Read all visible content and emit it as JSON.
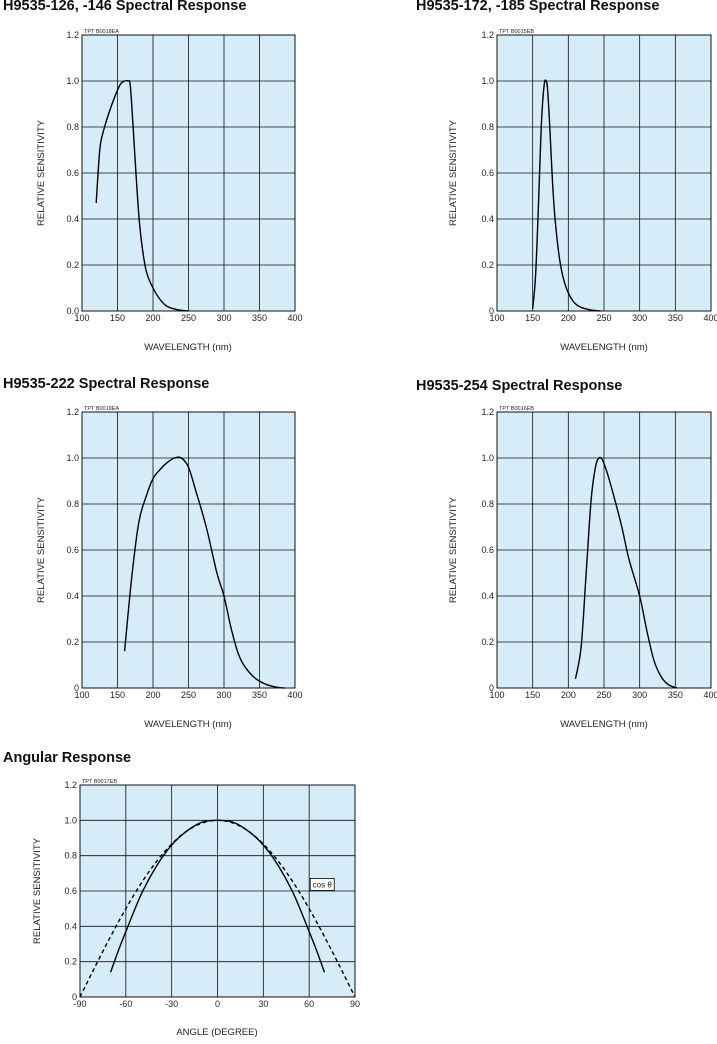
{
  "colors": {
    "plot_bg": "#d6ecf8",
    "grid": "#111111",
    "curve": "#000000",
    "page_bg": "#ffffff"
  },
  "chart_data": [
    {
      "id": "c1",
      "type": "line",
      "title": "H9535-126, -146 Spectral Response",
      "code": "TPT B0018EA",
      "xlabel": "WAVELENGTH (nm)",
      "ylabel": "RELATIVE SENSITIVITY",
      "xlim": [
        100,
        400
      ],
      "ylim": [
        0,
        1.2
      ],
      "xticks": [
        100,
        150,
        200,
        250,
        300,
        350,
        400
      ],
      "xtick_labels": [
        "100",
        "150",
        "200",
        "250",
        "300",
        "350",
        "400"
      ],
      "yticks": [
        0,
        0.2,
        0.4,
        0.6,
        0.8,
        1.0,
        1.2
      ],
      "ytick_labels": [
        "0.0",
        "0.2",
        "0.4",
        "0.6",
        "0.8",
        "1.0",
        "1.2"
      ],
      "grid": true,
      "series": [
        {
          "dashed": false,
          "points": [
            [
              120,
              0.47
            ],
            [
              125,
              0.7
            ],
            [
              130,
              0.78
            ],
            [
              140,
              0.88
            ],
            [
              150,
              0.96
            ],
            [
              155,
              0.99
            ],
            [
              160,
              1.0
            ],
            [
              165,
              1.0
            ],
            [
              168,
              0.98
            ],
            [
              172,
              0.8
            ],
            [
              177,
              0.55
            ],
            [
              182,
              0.35
            ],
            [
              190,
              0.18
            ],
            [
              200,
              0.1
            ],
            [
              210,
              0.05
            ],
            [
              220,
              0.02
            ],
            [
              235,
              0.005
            ],
            [
              250,
              0.0
            ]
          ]
        }
      ]
    },
    {
      "id": "c2",
      "type": "line",
      "title": "H9535-172, -185 Spectral Response",
      "code": "TPT B0015EB",
      "xlabel": "WAVELENGTH (nm)",
      "ylabel": "RELATIVE SENSITIVITY",
      "xlim": [
        100,
        400
      ],
      "ylim": [
        0,
        1.2
      ],
      "xticks": [
        100,
        150,
        200,
        250,
        300,
        350,
        400
      ],
      "xtick_labels": [
        "100",
        "150",
        "200",
        "250",
        "300",
        "350",
        "400"
      ],
      "yticks": [
        0,
        0.2,
        0.4,
        0.6,
        0.8,
        1.0,
        1.2
      ],
      "ytick_labels": [
        "0",
        "0.2",
        "0.4",
        "0.6",
        "0.8",
        "1.0",
        "1.2"
      ],
      "grid": true,
      "series": [
        {
          "dashed": false,
          "points": [
            [
              150,
              0.01
            ],
            [
              154,
              0.15
            ],
            [
              158,
              0.45
            ],
            [
              162,
              0.8
            ],
            [
              166,
              0.98
            ],
            [
              169,
              1.0
            ],
            [
              171,
              0.96
            ],
            [
              174,
              0.8
            ],
            [
              178,
              0.55
            ],
            [
              182,
              0.38
            ],
            [
              188,
              0.22
            ],
            [
              195,
              0.12
            ],
            [
              205,
              0.05
            ],
            [
              215,
              0.02
            ],
            [
              230,
              0.005
            ],
            [
              245,
              0.0
            ]
          ]
        }
      ]
    },
    {
      "id": "c3",
      "type": "line",
      "title": "H9535-222 Spectral Response",
      "code": "TPT B0019EA",
      "xlabel": "WAVELENGTH (nm)",
      "ylabel": "RELATIVE SENSITIVITY",
      "xlim": [
        100,
        400
      ],
      "ylim": [
        0,
        1.2
      ],
      "xticks": [
        100,
        150,
        200,
        250,
        300,
        350,
        400
      ],
      "xtick_labels": [
        "100",
        "150",
        "200",
        "250",
        "300",
        "350",
        "400"
      ],
      "yticks": [
        0,
        0.2,
        0.4,
        0.6,
        0.8,
        1.0,
        1.2
      ],
      "ytick_labels": [
        "0",
        "0.2",
        "0.4",
        "0.6",
        "0.8",
        "1.0",
        "1.2"
      ],
      "grid": true,
      "series": [
        {
          "dashed": false,
          "points": [
            [
              160,
              0.16
            ],
            [
              170,
              0.48
            ],
            [
              180,
              0.72
            ],
            [
              190,
              0.83
            ],
            [
              200,
              0.91
            ],
            [
              210,
              0.95
            ],
            [
              220,
              0.98
            ],
            [
              230,
              1.0
            ],
            [
              240,
              1.0
            ],
            [
              250,
              0.96
            ],
            [
              260,
              0.86
            ],
            [
              275,
              0.7
            ],
            [
              290,
              0.5
            ],
            [
              300,
              0.4
            ],
            [
              310,
              0.26
            ],
            [
              320,
              0.15
            ],
            [
              330,
              0.09
            ],
            [
              345,
              0.04
            ],
            [
              360,
              0.015
            ],
            [
              375,
              0.003
            ],
            [
              385,
              0.0
            ]
          ]
        }
      ]
    },
    {
      "id": "c4",
      "type": "line",
      "title": "H9535-254 Spectral Response",
      "code": "TPT B0016EB",
      "xlabel": "WAVELENGTH (nm)",
      "ylabel": "RELATIVE SENSITIVITY",
      "xlim": [
        100,
        400
      ],
      "ylim": [
        0,
        1.2
      ],
      "xticks": [
        100,
        150,
        200,
        250,
        300,
        350,
        400
      ],
      "xtick_labels": [
        "100",
        "150",
        "200",
        "250",
        "300",
        "350",
        "400"
      ],
      "yticks": [
        0,
        0.2,
        0.4,
        0.6,
        0.8,
        1.0,
        1.2
      ],
      "ytick_labels": [
        "0",
        "0.2",
        "0.4",
        "0.6",
        "0.8",
        "1.0",
        "1.2"
      ],
      "grid": true,
      "series": [
        {
          "dashed": false,
          "points": [
            [
              210,
              0.04
            ],
            [
              218,
              0.18
            ],
            [
              225,
              0.5
            ],
            [
              232,
              0.82
            ],
            [
              238,
              0.96
            ],
            [
              243,
              1.0
            ],
            [
              248,
              0.99
            ],
            [
              255,
              0.93
            ],
            [
              265,
              0.82
            ],
            [
              275,
              0.7
            ],
            [
              285,
              0.56
            ],
            [
              300,
              0.4
            ],
            [
              310,
              0.25
            ],
            [
              320,
              0.12
            ],
            [
              330,
              0.05
            ],
            [
              340,
              0.015
            ],
            [
              352,
              0.0
            ]
          ]
        }
      ]
    },
    {
      "id": "c5",
      "type": "line",
      "title": "Angular Response",
      "code": "TPT B0017EB",
      "xlabel": "ANGLE (DEGREE)",
      "ylabel": "RELATIVE SENSITIVITY",
      "xlim": [
        -90,
        90
      ],
      "ylim": [
        0,
        1.2
      ],
      "xticks": [
        -90,
        -60,
        -30,
        0,
        30,
        60,
        90
      ],
      "xtick_labels": [
        "-90",
        "-60",
        "-30",
        "0",
        "30",
        "60",
        "90"
      ],
      "yticks": [
        0,
        0.2,
        0.4,
        0.6,
        0.8,
        1.0,
        1.2
      ],
      "ytick_labels": [
        "0",
        "0.2",
        "0.4",
        "0.6",
        "0.8",
        "1.0",
        "1.2"
      ],
      "grid": true,
      "annotation": {
        "text": "cos θ",
        "x": 62,
        "y": 0.62
      },
      "series": [
        {
          "dashed": false,
          "points": [
            [
              -70,
              0.14
            ],
            [
              -65,
              0.26
            ],
            [
              -60,
              0.37
            ],
            [
              -50,
              0.58
            ],
            [
              -40,
              0.74
            ],
            [
              -30,
              0.86
            ],
            [
              -20,
              0.94
            ],
            [
              -10,
              0.99
            ],
            [
              0,
              1.0
            ],
            [
              10,
              0.99
            ],
            [
              20,
              0.94
            ],
            [
              30,
              0.86
            ],
            [
              40,
              0.74
            ],
            [
              50,
              0.58
            ],
            [
              60,
              0.37
            ],
            [
              65,
              0.26
            ],
            [
              70,
              0.14
            ]
          ]
        },
        {
          "dashed": true,
          "points": [
            [
              -90,
              0.0
            ],
            [
              -80,
              0.174
            ],
            [
              -70,
              0.342
            ],
            [
              -60,
              0.5
            ],
            [
              -50,
              0.643
            ],
            [
              -40,
              0.766
            ],
            [
              -30,
              0.866
            ],
            [
              -20,
              0.94
            ],
            [
              -10,
              0.985
            ],
            [
              0,
              1.0
            ],
            [
              10,
              0.985
            ],
            [
              20,
              0.94
            ],
            [
              30,
              0.866
            ],
            [
              40,
              0.766
            ],
            [
              50,
              0.643
            ],
            [
              60,
              0.5
            ],
            [
              70,
              0.342
            ],
            [
              80,
              0.174
            ],
            [
              90,
              0.0
            ]
          ]
        }
      ]
    }
  ]
}
